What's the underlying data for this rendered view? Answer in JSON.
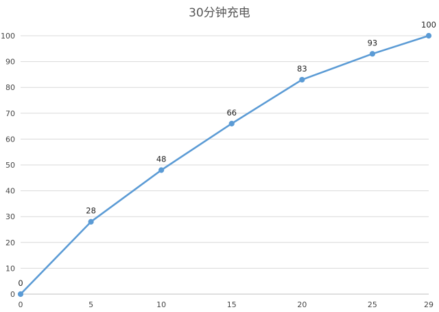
{
  "chart_data": {
    "type": "line",
    "title": "30分钟充电",
    "xlabel": "",
    "ylabel": "",
    "x": [
      0,
      5,
      10,
      15,
      20,
      25,
      29
    ],
    "series": [
      {
        "values": [
          0,
          28,
          48,
          66,
          83,
          93,
          100
        ]
      }
    ],
    "xticks": [
      0,
      5,
      10,
      15,
      20,
      25,
      29
    ],
    "yticks": [
      0,
      10,
      20,
      30,
      40,
      50,
      60,
      70,
      80,
      90,
      100
    ],
    "xlim": [
      0,
      29
    ],
    "ylim": [
      0,
      100
    ],
    "grid": true,
    "data_labels": true,
    "line_color": "#5b9bd5",
    "legend": "none"
  }
}
